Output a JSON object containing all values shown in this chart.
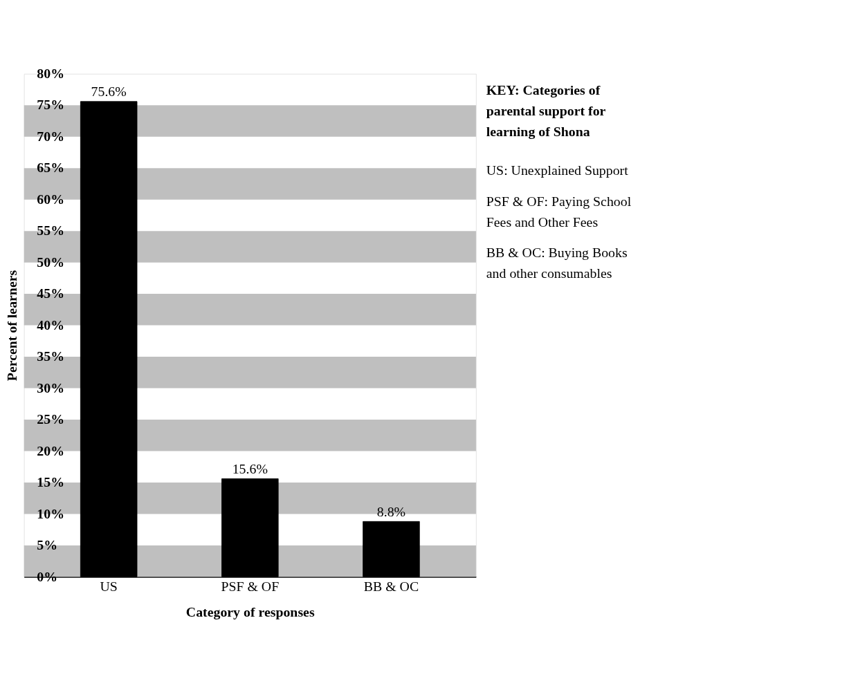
{
  "chart_data": {
    "type": "bar",
    "xlabel": "Category of responses",
    "ylabel": "Percent of learners",
    "categories": [
      "US",
      "PSF & OF",
      "BB & OC"
    ],
    "values": [
      75.6,
      15.6,
      8.8
    ],
    "value_labels": [
      "75.6%",
      "15.6%",
      "8.8%"
    ],
    "color": "#000000",
    "ylim": [
      0,
      80
    ],
    "yticks": [
      {
        "value": 0,
        "label": "0%"
      },
      {
        "value": 5,
        "label": "5%"
      },
      {
        "value": 10,
        "label": "10%"
      },
      {
        "value": 15,
        "label": "15%"
      },
      {
        "value": 20,
        "label": "20%"
      },
      {
        "value": 25,
        "label": "25%"
      },
      {
        "value": 30,
        "label": "30%"
      },
      {
        "value": 35,
        "label": "35%"
      },
      {
        "value": 40,
        "label": "40%"
      },
      {
        "value": 45,
        "label": "45%"
      },
      {
        "value": 50,
        "label": "50%"
      },
      {
        "value": 55,
        "label": "55%"
      },
      {
        "value": 60,
        "label": "60%"
      },
      {
        "value": 65,
        "label": "65%"
      },
      {
        "value": 70,
        "label": "70%"
      },
      {
        "value": 75,
        "label": "75%"
      },
      {
        "value": 80,
        "label": "80%"
      }
    ],
    "bands": [
      {
        "axis": "y",
        "from": 0,
        "to": 5,
        "color": "#bfbfbf"
      },
      {
        "axis": "y",
        "from": 10,
        "to": 15,
        "color": "#bfbfbf"
      },
      {
        "axis": "y",
        "from": 20,
        "to": 25,
        "color": "#bfbfbf"
      },
      {
        "axis": "y",
        "from": 30,
        "to": 35,
        "color": "#bfbfbf"
      },
      {
        "axis": "y",
        "from": 40,
        "to": 45,
        "color": "#bfbfbf"
      },
      {
        "axis": "y",
        "from": 50,
        "to": 55,
        "color": "#bfbfbf"
      },
      {
        "axis": "y",
        "from": 60,
        "to": 65,
        "color": "#bfbfbf"
      },
      {
        "axis": "y",
        "from": 70,
        "to": 75,
        "color": "#bfbfbf"
      }
    ],
    "annotations": [
      "KEY: Categories of parental support for learning of Shona",
      "US: Unexplained Support",
      "PSF & OF: Paying School Fees and Other Fees",
      "BB & OC:  Buying Books and other consumables"
    ],
    "grid": false
  }
}
